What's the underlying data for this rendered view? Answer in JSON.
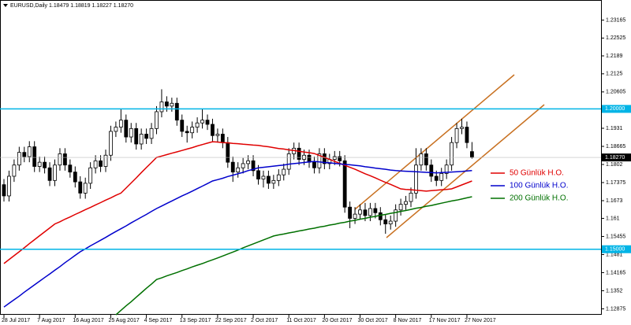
{
  "chart_data": {
    "type": "candlestick",
    "title": "EURUSD,Daily  1.18479 1.18819 1.18227 1.18270",
    "categories": [
      "28 Jul 2017",
      null,
      null,
      null,
      null,
      null,
      null,
      "7 Aug 2017",
      null,
      null,
      null,
      null,
      null,
      null,
      "16 Aug 2017",
      null,
      null,
      null,
      null,
      null,
      null,
      "25 Aug 2017",
      null,
      null,
      null,
      null,
      null,
      null,
      "4 Sep 2017",
      null,
      null,
      null,
      null,
      null,
      null,
      "13 Sep 2017",
      null,
      null,
      null,
      null,
      null,
      null,
      "22 Sep 2017",
      null,
      null,
      null,
      null,
      null,
      null,
      "2 Oct 2017",
      null,
      null,
      null,
      null,
      null,
      null,
      "11 Oct 2017",
      null,
      null,
      null,
      null,
      null,
      null,
      "20 Oct 2017",
      null,
      null,
      null,
      null,
      null,
      null,
      "30 Oct 2017",
      null,
      null,
      null,
      null,
      null,
      null,
      "8 Nov 2017",
      null,
      null,
      null,
      null,
      null,
      null,
      "17 Nov 2017",
      null,
      null,
      null,
      null,
      null,
      null,
      "27 Nov 2017",
      null
    ],
    "open": [
      1.173,
      1.169,
      1.176,
      1.18,
      1.1845,
      1.183,
      1.1865,
      1.1795,
      1.181,
      1.179,
      1.1745,
      1.18,
      1.184,
      1.18,
      1.1775,
      1.174,
      1.17,
      1.1735,
      1.179,
      1.1815,
      1.1795,
      1.1835,
      1.192,
      1.1935,
      1.196,
      1.19,
      1.193,
      1.1875,
      1.191,
      1.1895,
      1.193,
      1.199,
      1.2025,
      1.201,
      1.202,
      1.196,
      1.192,
      1.1915,
      1.1935,
      1.195,
      1.196,
      1.1945,
      1.1905,
      1.191,
      1.188,
      1.181,
      1.1775,
      1.179,
      1.1805,
      1.1815,
      1.178,
      1.175,
      1.176,
      1.1735,
      1.1745,
      1.1765,
      1.1785,
      1.184,
      1.186,
      1.182,
      1.1835,
      1.181,
      1.179,
      1.184,
      1.1805,
      1.182,
      1.183,
      1.1815,
      1.165,
      1.161,
      1.1625,
      1.164,
      1.162,
      1.1645,
      1.163,
      1.1605,
      1.159,
      1.16,
      1.164,
      1.166,
      1.167,
      1.17,
      1.18,
      1.184,
      1.18,
      1.176,
      1.1745,
      1.177,
      1.18,
      1.188,
      1.193,
      1.1935,
      1.18479
    ],
    "high": [
      1.175,
      1.178,
      1.182,
      1.1865,
      1.1865,
      1.1885,
      1.1885,
      1.183,
      1.183,
      1.181,
      1.182,
      1.186,
      1.186,
      1.182,
      1.1795,
      1.176,
      1.1755,
      1.181,
      1.1835,
      1.1835,
      1.1855,
      1.194,
      1.1955,
      1.2,
      1.198,
      1.195,
      1.195,
      1.193,
      1.193,
      1.195,
      1.201,
      1.207,
      1.2045,
      1.204,
      1.204,
      1.198,
      1.194,
      1.1955,
      1.197,
      1.2,
      1.198,
      1.1965,
      1.193,
      1.193,
      1.19,
      1.183,
      1.181,
      1.1825,
      1.1835,
      1.1835,
      1.18,
      1.178,
      1.178,
      1.1765,
      1.1785,
      1.1805,
      1.186,
      1.188,
      1.188,
      1.1855,
      1.1855,
      1.183,
      1.186,
      1.186,
      1.184,
      1.185,
      1.185,
      1.1835,
      1.167,
      1.165,
      1.166,
      1.1665,
      1.1665,
      1.1665,
      1.165,
      1.1625,
      1.162,
      1.166,
      1.168,
      1.169,
      1.172,
      1.186,
      1.186,
      1.186,
      1.182,
      1.178,
      1.179,
      1.182,
      1.19,
      1.195,
      1.1965,
      1.1955,
      1.18819
    ],
    "low": [
      1.167,
      1.167,
      1.174,
      1.178,
      1.181,
      1.181,
      1.1775,
      1.1775,
      1.177,
      1.1725,
      1.1725,
      1.178,
      1.178,
      1.1755,
      1.172,
      1.168,
      1.168,
      1.1715,
      1.177,
      1.1775,
      1.1775,
      1.1815,
      1.19,
      1.1915,
      1.188,
      1.188,
      1.1855,
      1.1855,
      1.1875,
      1.1875,
      1.191,
      1.197,
      1.199,
      1.199,
      1.194,
      1.19,
      1.188,
      1.1895,
      1.1915,
      1.193,
      1.1925,
      1.1885,
      1.188,
      1.186,
      1.179,
      1.174,
      1.1755,
      1.177,
      1.1785,
      1.176,
      1.173,
      1.172,
      1.1715,
      1.1715,
      1.1725,
      1.1745,
      1.1765,
      1.182,
      1.18,
      1.18,
      1.179,
      1.177,
      1.177,
      1.1785,
      1.1785,
      1.18,
      1.1795,
      1.163,
      1.1575,
      1.159,
      1.1605,
      1.16,
      1.16,
      1.161,
      1.1585,
      1.1555,
      1.157,
      1.158,
      1.162,
      1.164,
      1.165,
      1.168,
      1.178,
      1.178,
      1.174,
      1.1725,
      1.1725,
      1.175,
      1.178,
      1.186,
      1.191,
      1.186,
      1.18227
    ],
    "close": [
      1.169,
      1.176,
      1.18,
      1.1845,
      1.183,
      1.1865,
      1.1795,
      1.181,
      1.179,
      1.1745,
      1.18,
      1.184,
      1.18,
      1.1775,
      1.174,
      1.17,
      1.1735,
      1.179,
      1.1815,
      1.1795,
      1.1835,
      1.192,
      1.1935,
      1.196,
      1.19,
      1.193,
      1.1875,
      1.191,
      1.1895,
      1.193,
      1.199,
      1.2025,
      1.201,
      1.202,
      1.196,
      1.192,
      1.1915,
      1.1935,
      1.195,
      1.196,
      1.1945,
      1.1905,
      1.191,
      1.188,
      1.181,
      1.1775,
      1.179,
      1.1805,
      1.1815,
      1.178,
      1.175,
      1.176,
      1.1735,
      1.1745,
      1.1765,
      1.1785,
      1.184,
      1.186,
      1.182,
      1.1835,
      1.181,
      1.179,
      1.184,
      1.1805,
      1.182,
      1.183,
      1.1815,
      1.165,
      1.161,
      1.1625,
      1.164,
      1.162,
      1.1645,
      1.163,
      1.1605,
      1.159,
      1.16,
      1.164,
      1.166,
      1.167,
      1.17,
      1.18,
      1.184,
      1.18,
      1.176,
      1.1745,
      1.177,
      1.18,
      1.188,
      1.193,
      1.1935,
      1.188,
      1.1827
    ],
    "last_price_label": "1.18270",
    "series": [
      {
        "name": "50 Günlük H.O.",
        "color": "#e00000",
        "values": [
          1.1449,
          1.1463,
          1.1477,
          1.1491,
          1.1505,
          1.152,
          1.1534,
          1.1548,
          1.1562,
          1.1576,
          1.159,
          1.1598,
          1.1607,
          1.1615,
          1.1624,
          1.1632,
          1.1641,
          1.1649,
          1.1658,
          1.1666,
          1.1675,
          1.1683,
          1.1692,
          1.17,
          1.1718,
          1.1736,
          1.1754,
          1.1773,
          1.1791,
          1.1809,
          1.1827,
          1.1832,
          1.1837,
          1.1842,
          1.1847,
          1.1852,
          1.1857,
          1.1862,
          1.1868,
          1.1873,
          1.1878,
          1.1883,
          1.1882,
          1.188,
          1.1879,
          1.1877,
          1.1876,
          1.1874,
          1.1873,
          1.1871,
          1.187,
          1.1867,
          1.1865,
          1.1862,
          1.1859,
          1.1857,
          1.1854,
          1.1852,
          1.1849,
          1.1846,
          1.1844,
          1.1841,
          1.1834,
          1.1827,
          1.182,
          1.1813,
          1.1806,
          1.1799,
          1.1792,
          1.1785,
          1.1777,
          1.1769,
          1.1762,
          1.1754,
          1.1746,
          1.1738,
          1.1731,
          1.1723,
          1.1715,
          1.1713,
          1.1712,
          1.171,
          1.1709,
          1.1707,
          1.1709,
          1.171,
          1.1712,
          1.1713,
          1.1715,
          1.1722,
          1.1729,
          1.1736,
          1.1743
        ]
      },
      {
        "name": "100 Günlük H.O.",
        "color": "#0000cc",
        "values": [
          1.1294,
          1.1307,
          1.132,
          1.1333,
          1.1347,
          1.136,
          1.1373,
          1.1386,
          1.1399,
          1.1412,
          1.1425,
          1.1438,
          1.1452,
          1.1465,
          1.1478,
          1.1491,
          1.1501,
          1.1512,
          1.1522,
          1.1532,
          1.1542,
          1.1553,
          1.1563,
          1.1573,
          1.1583,
          1.1594,
          1.1604,
          1.1614,
          1.1624,
          1.1635,
          1.1645,
          1.1654,
          1.1663,
          1.1672,
          1.1681,
          1.169,
          1.1698,
          1.1707,
          1.1716,
          1.1725,
          1.1734,
          1.1743,
          1.1748,
          1.1753,
          1.1759,
          1.1764,
          1.1769,
          1.1774,
          1.178,
          1.1785,
          1.179,
          1.1792,
          1.1794,
          1.1796,
          1.1798,
          1.18,
          1.1803,
          1.1805,
          1.1807,
          1.1809,
          1.1811,
          1.1813,
          1.1811,
          1.1809,
          1.1808,
          1.1806,
          1.1804,
          1.1802,
          1.1801,
          1.1799,
          1.1797,
          1.1794,
          1.1792,
          1.1789,
          1.1787,
          1.1785,
          1.1782,
          1.178,
          1.1779,
          1.1778,
          1.1777,
          1.1776,
          1.1775,
          1.1774,
          1.1773,
          1.1772,
          1.1773,
          1.1774,
          1.1775,
          1.1776,
          1.1777,
          1.1779,
          1.178
        ]
      },
      {
        "name": "200 Günlük H.O.",
        "color": "#007000",
        "values": [
          null,
          null,
          null,
          null,
          null,
          null,
          null,
          null,
          null,
          null,
          null,
          null,
          null,
          null,
          null,
          null,
          null,
          null,
          null,
          null,
          null,
          null,
          1.1266,
          1.1282,
          1.1298,
          1.1313,
          1.1329,
          1.1345,
          1.1361,
          1.1376,
          1.1392,
          1.1398,
          1.1405,
          1.1411,
          1.1417,
          1.1424,
          1.143,
          1.1437,
          1.1443,
          1.1449,
          1.1456,
          1.1462,
          1.1469,
          1.1476,
          1.1483,
          1.149,
          1.1497,
          1.1505,
          1.1512,
          1.1519,
          1.1526,
          1.1533,
          1.154,
          1.1547,
          1.1551,
          1.1554,
          1.1558,
          1.1561,
          1.1565,
          1.1568,
          1.1572,
          1.1575,
          1.1579,
          1.1582,
          1.1586,
          1.1589,
          1.1593,
          1.1596,
          1.16,
          1.1603,
          1.1607,
          1.161,
          1.1614,
          1.1617,
          1.1621,
          1.1624,
          1.1628,
          1.1631,
          1.1635,
          1.1638,
          1.1642,
          1.1646,
          1.1649,
          1.1653,
          1.1656,
          1.166,
          1.1664,
          1.1668,
          1.1672,
          1.1675,
          1.1679,
          1.1683,
          1.1687
        ]
      }
    ],
    "hlines": [
      {
        "value": 1.2,
        "label": "1.20000"
      },
      {
        "value": 1.15,
        "label": "1.15000"
      }
    ],
    "hline_color": "#00b4e6",
    "ylim": [
      1.12664,
      1.23881
    ],
    "yticks": [
      1.23165,
      1.22525,
      1.2189,
      1.2125,
      1.20605,
      1.1931,
      1.18665,
      1.1802,
      1.17375,
      1.1673,
      1.161,
      1.15455,
      1.1481,
      1.14165,
      1.1352,
      1.12875
    ],
    "grid": false
  }
}
